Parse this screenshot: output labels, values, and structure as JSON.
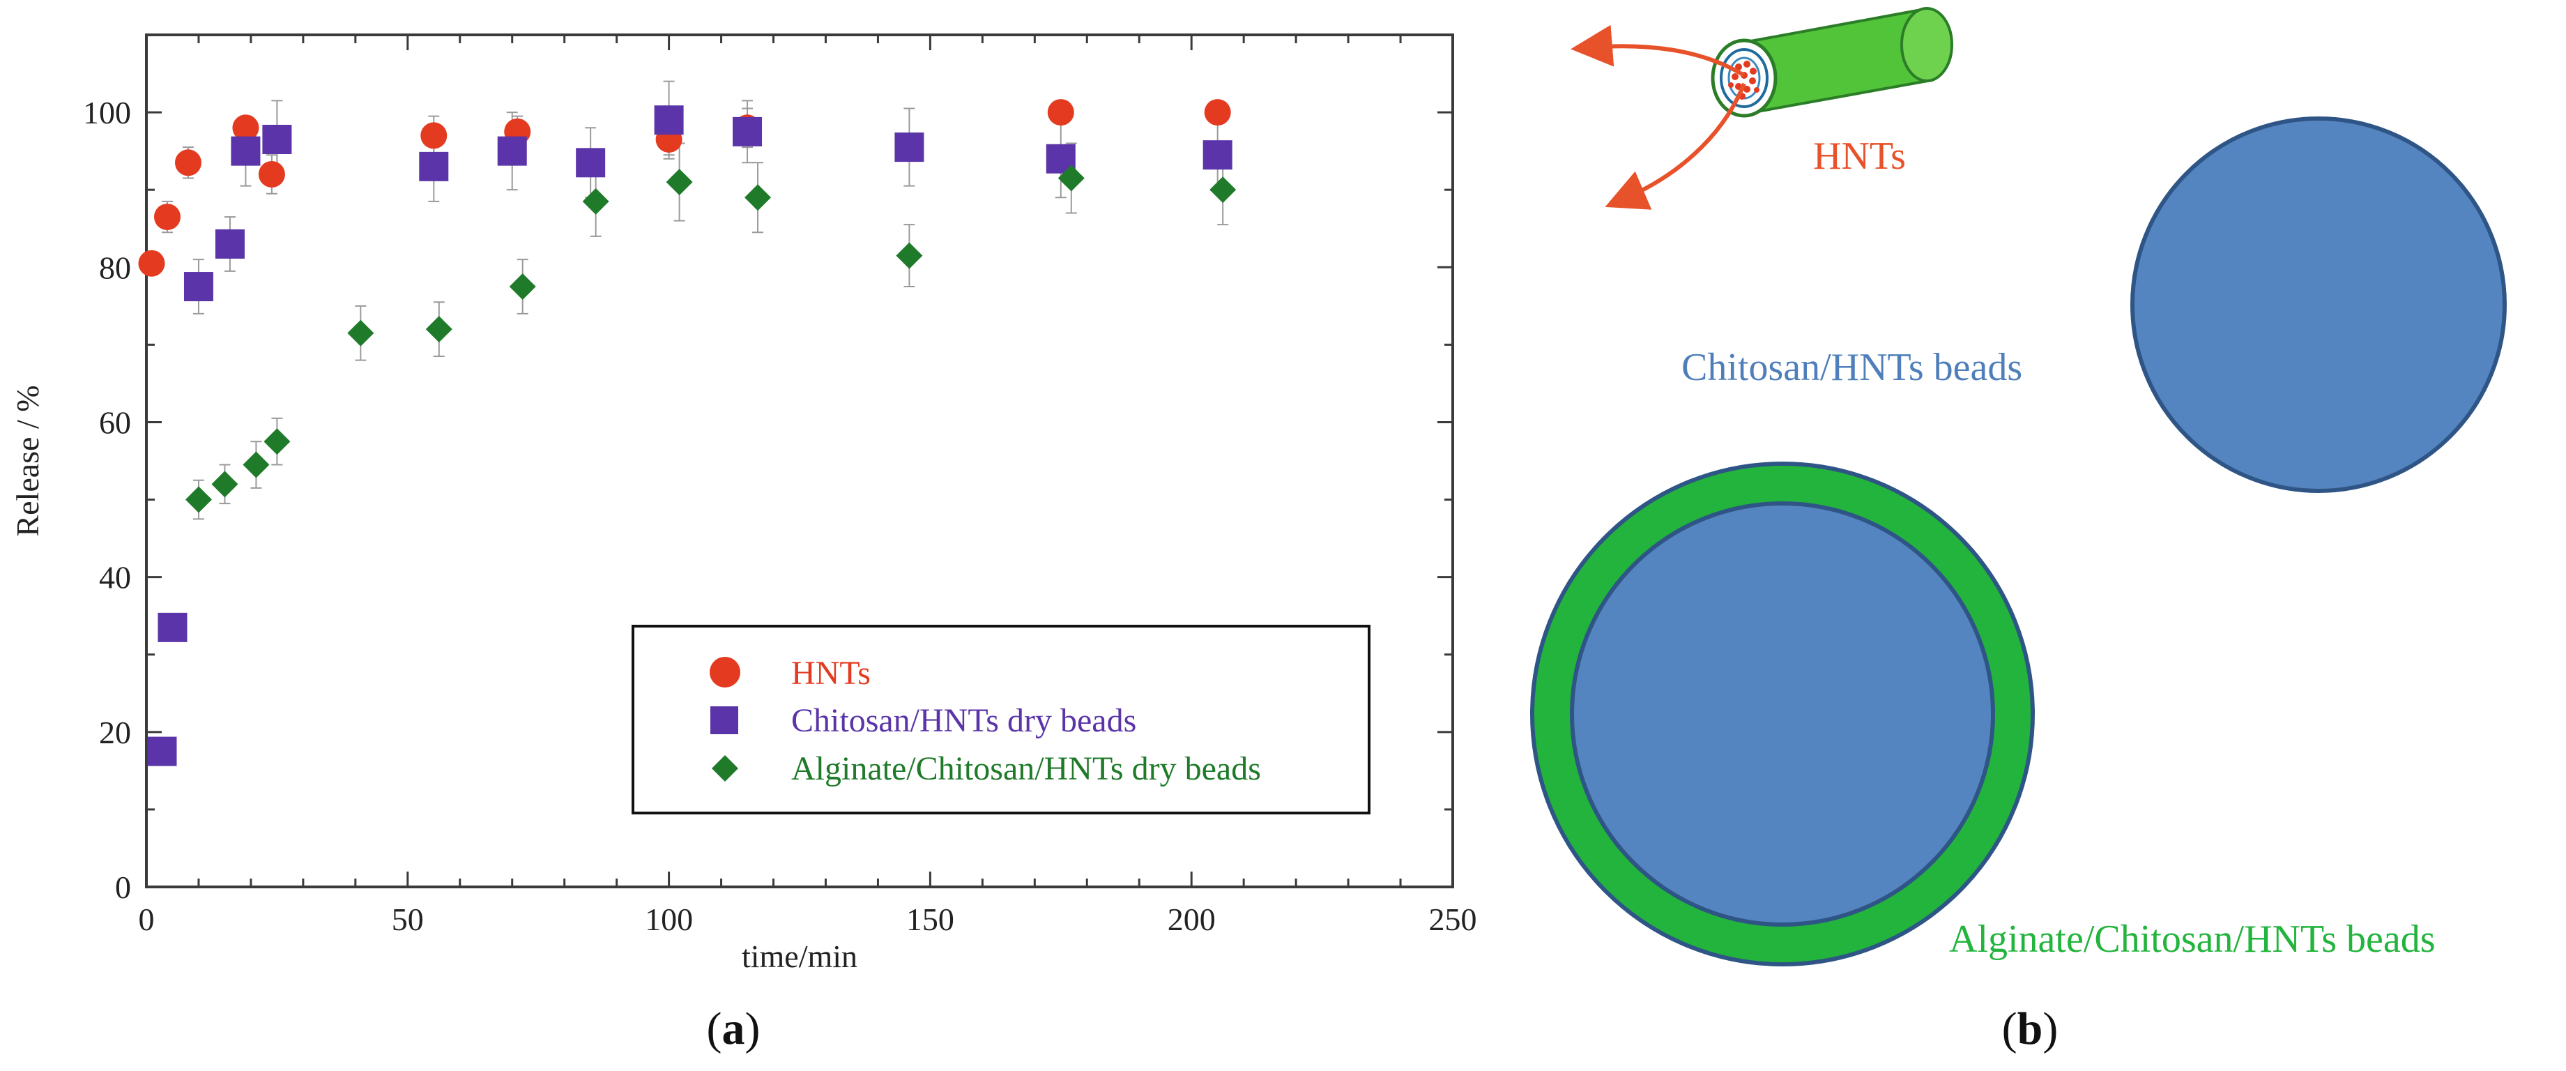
{
  "panel_a": {
    "caption_open": "(",
    "caption_letter": "a",
    "caption_close": ")"
  },
  "panel_b": {
    "caption_open": "(",
    "caption_letter": "b",
    "caption_close": ")",
    "hnts_label": "HNTs",
    "chitosan_bead_label": "Chitosan/HNTs beads",
    "alginate_bead_label": "Alginate/Chitosan/HNTs beads"
  },
  "colors": {
    "hnts": "#e43a1f",
    "chitosan": "#5a34a8",
    "alginate": "#1f7a2a",
    "bead_blue": "#5585c0",
    "bead_border": "#2e5585",
    "coat_green": "#22b43c",
    "arrow": "#e8522a",
    "error_bar": "#9a9a9a"
  },
  "chart_data": {
    "type": "scatter",
    "title": "",
    "xlabel": "time/min",
    "ylabel": "Release / %",
    "xlim": [
      0,
      250
    ],
    "ylim": [
      0,
      110
    ],
    "xticks": [
      0,
      50,
      100,
      150,
      200,
      250
    ],
    "yticks": [
      0,
      20,
      40,
      60,
      80,
      100
    ],
    "grid": false,
    "legend_position": "bottom-right",
    "series": [
      {
        "name": "HNTs",
        "marker": "circle",
        "color": "#e43a1f",
        "x": [
          1,
          4,
          8,
          19,
          24,
          55,
          71,
          100,
          115,
          175,
          205
        ],
        "y": [
          80.5,
          86.5,
          93.5,
          98,
          92,
          97,
          97.5,
          96.5,
          98,
          100,
          100
        ],
        "err": [
          1.5,
          2,
          2,
          1.5,
          2.5,
          2.5,
          2,
          2,
          2.5,
          1,
          1
        ]
      },
      {
        "name": "Chitosan/HNTs dry beads",
        "marker": "square",
        "color": "#5a34a8",
        "x": [
          3,
          5,
          10,
          16,
          19,
          25,
          55,
          70,
          85,
          100,
          115,
          146,
          175,
          205
        ],
        "y": [
          17.5,
          33.5,
          77.5,
          83,
          95,
          96.5,
          93,
          95,
          93.5,
          99,
          97.5,
          95.5,
          94,
          94.5
        ],
        "err": [
          1.5,
          1.5,
          3.5,
          3.5,
          4.5,
          5,
          4.5,
          5,
          4.5,
          5,
          4,
          5,
          5,
          4.5
        ]
      },
      {
        "name": "Alginate/Chitosan/HNTs dry beads",
        "marker": "diamond",
        "color": "#1f7a2a",
        "x": [
          10,
          15,
          21,
          25,
          41,
          56,
          72,
          86,
          102,
          117,
          146,
          177,
          206
        ],
        "y": [
          50,
          52,
          54.5,
          57.5,
          71.5,
          72,
          77.5,
          88.5,
          91,
          89,
          81.5,
          91.5,
          90
        ],
        "err": [
          2.5,
          2.5,
          3,
          3,
          3.5,
          3.5,
          3.5,
          4.5,
          5,
          4.5,
          4,
          4.5,
          4.5
        ]
      }
    ]
  }
}
